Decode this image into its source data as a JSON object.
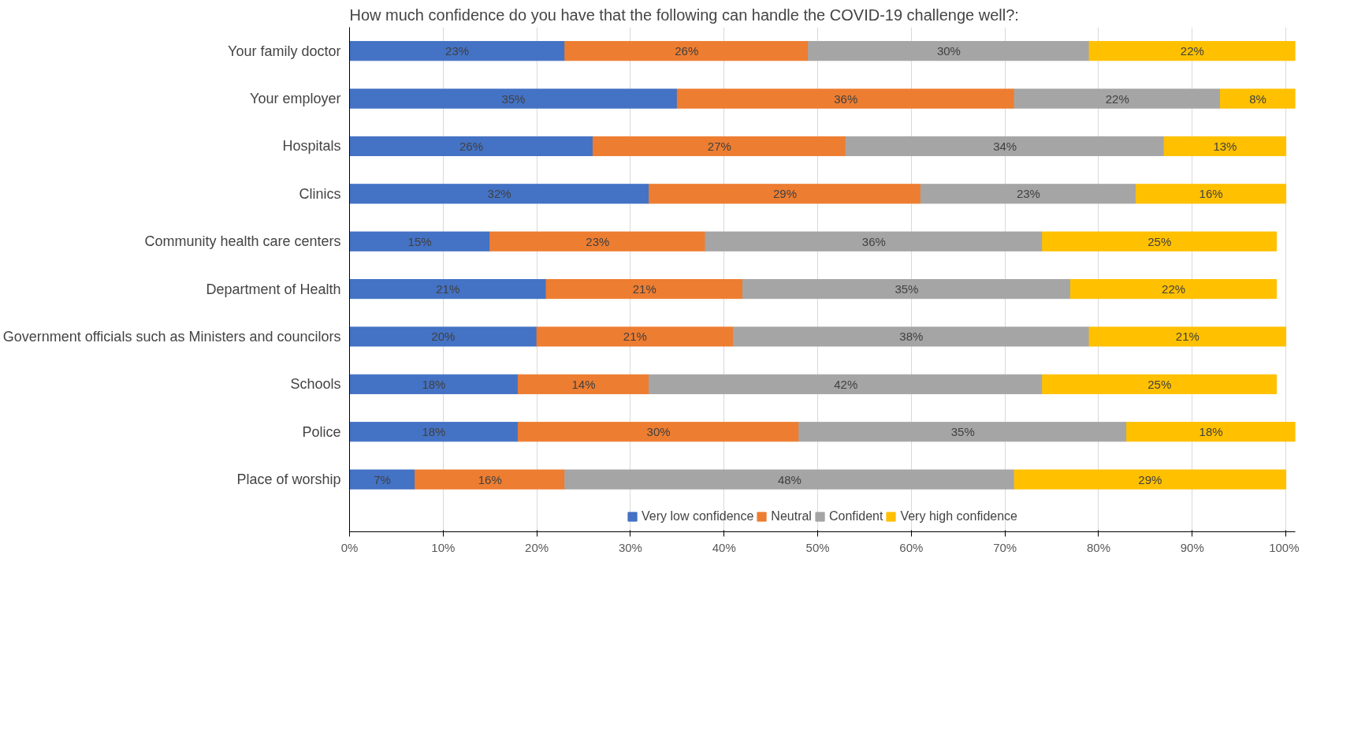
{
  "chart_data": {
    "type": "bar",
    "orientation": "horizontal",
    "stacked": true,
    "title": "How much confidence do you have that the following can handle the COVID-19 challenge well?:",
    "categories": [
      "Your family doctor",
      "Your employer",
      "Hospitals",
      "Clinics",
      "Community health care centers",
      "Department of Health",
      "Government officials such as Ministers and councilors",
      "Schools",
      "Police",
      "Place of worship"
    ],
    "series": [
      {
        "name": "Very low confidence",
        "color": "#4472c4",
        "values": [
          23,
          35,
          26,
          32,
          15,
          21,
          20,
          18,
          18,
          7
        ]
      },
      {
        "name": "Neutral",
        "color": "#ed7d31",
        "values": [
          26,
          36,
          27,
          29,
          23,
          21,
          21,
          14,
          30,
          16
        ]
      },
      {
        "name": "Confident",
        "color": "#a5a5a5",
        "values": [
          30,
          22,
          34,
          23,
          36,
          35,
          38,
          42,
          35,
          48
        ]
      },
      {
        "name": "Very high confidence",
        "color": "#ffc000",
        "values": [
          22,
          8,
          13,
          16,
          25,
          22,
          21,
          25,
          18,
          29
        ]
      }
    ],
    "xlim": [
      0,
      101
    ],
    "xticks": [
      {
        "value": 0,
        "label": "0%"
      },
      {
        "value": 10,
        "label": "10%"
      },
      {
        "value": 20,
        "label": "20%"
      },
      {
        "value": 30,
        "label": "30%"
      },
      {
        "value": 40,
        "label": "40%"
      },
      {
        "value": 50,
        "label": "50%"
      },
      {
        "value": 60,
        "label": "60%"
      },
      {
        "value": 70,
        "label": "70%"
      },
      {
        "value": 80,
        "label": "80%"
      },
      {
        "value": 90,
        "label": "90%"
      },
      {
        "value": 100,
        "label": "100%"
      }
    ],
    "value_labels": [
      [
        "23%",
        "35%",
        "26%",
        "32%",
        "15%",
        "21%",
        "20%",
        "18%",
        "18%",
        "7%"
      ],
      [
        "26%",
        "36%",
        "27%",
        "29%",
        "23%",
        "21%",
        "21%",
        "14%",
        "30%",
        "16%"
      ],
      [
        "30%",
        "22%",
        "34%",
        "23%",
        "36%",
        "35%",
        "38%",
        "42%",
        "35%",
        "48%"
      ],
      [
        "22%",
        "8%",
        "13%",
        "16%",
        "25%",
        "22%",
        "21%",
        "25%",
        "18%",
        "29%"
      ]
    ],
    "grid": "x",
    "legend": "bottom"
  }
}
